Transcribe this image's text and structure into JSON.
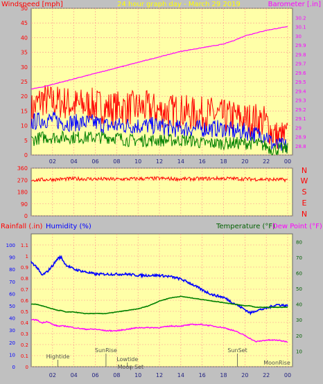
{
  "header": {
    "title": "24 hour graph day - March 29 2019",
    "wind_label": "Windspeed [mph]",
    "baro_label": "Barometer [.in]"
  },
  "labels": {
    "direction_letters": [
      "N",
      "W",
      "S",
      "E",
      "N"
    ],
    "rain_label": "Rainfall (.in)",
    "humidity_label": "Humidity (%)",
    "temp_label": "Temperature (°F)",
    "dew_label": "Dew Point (°F)"
  },
  "colors": {
    "plot_bg": "#ffffa8",
    "frame_bg": "#c0c0c0",
    "grid": "#ff9090",
    "wind_gust": "#ff0000",
    "wind_speed": "#0000ff",
    "wind_avg": "#008000",
    "barometer": "#ff00ff",
    "direction": "#ff0000",
    "humidity": "#0000ff",
    "temperature": "#008000",
    "dew_point": "#ff00ff",
    "title": "#ffff00",
    "events": "#505050"
  },
  "x_ticks": [
    "02",
    "04",
    "06",
    "08",
    "10",
    "12",
    "14",
    "16",
    "18",
    "20",
    "22",
    "00"
  ],
  "chart_data": [
    {
      "id": "wind_baro",
      "type": "line",
      "title": "24 hour graph day - March 29 2019",
      "ylabel": "Windspeed [mph]",
      "y2label": "Barometer [.in]",
      "ylim": [
        0,
        50
      ],
      "yticks": [
        "0",
        "5",
        "10",
        "15",
        "20",
        "25",
        "30",
        "35",
        "40",
        "45",
        "50"
      ],
      "y2lim": [
        28.7,
        30.3
      ],
      "y2ticks": [
        "28.8",
        "28.9",
        "29",
        "29.1",
        "29.2",
        "29.3",
        "29.4",
        "29.5",
        "29.6",
        "29.7",
        "29.8",
        "29.9",
        "30",
        "30.1",
        "30.2"
      ],
      "grid": true,
      "hours": [
        0,
        1,
        2,
        3,
        4,
        5,
        6,
        7,
        8,
        9,
        10,
        11,
        12,
        13,
        14,
        15,
        16,
        17,
        18,
        19,
        20,
        21,
        22,
        22.5,
        23,
        23.5,
        24
      ],
      "gust_mph": [
        15,
        19,
        18,
        18,
        17,
        17,
        17,
        16,
        16,
        16,
        16,
        16,
        15,
        15,
        15,
        14,
        14,
        14,
        13,
        13,
        12,
        12,
        11,
        8,
        6,
        6,
        6
      ],
      "speed_mph": [
        11,
        12,
        12,
        11,
        11,
        11,
        11,
        10,
        10,
        10,
        10,
        10,
        10,
        9,
        9,
        9,
        9,
        9,
        9,
        8,
        8,
        7,
        7,
        4,
        3,
        3,
        3
      ],
      "avg_mph": [
        5,
        6,
        6,
        6,
        6,
        6,
        6,
        6,
        6,
        5,
        5,
        5,
        5,
        5,
        5,
        5,
        4,
        4,
        4,
        4,
        4,
        4,
        3,
        2,
        2,
        2,
        2
      ],
      "barometer_inHg": [
        29.42,
        29.44,
        29.47,
        29.5,
        29.53,
        29.56,
        29.59,
        29.62,
        29.65,
        29.68,
        29.71,
        29.74,
        29.77,
        29.8,
        29.83,
        29.85,
        29.87,
        29.89,
        29.91,
        29.95,
        30.0,
        30.03,
        30.06,
        30.07,
        30.08,
        30.09,
        30.1
      ]
    },
    {
      "id": "direction",
      "type": "line",
      "ylim": [
        0,
        360
      ],
      "yticks": [
        "0",
        "90",
        "180",
        "270",
        "360"
      ],
      "grid": true,
      "hours": [
        0,
        2,
        4,
        6,
        8,
        10,
        12,
        14,
        16,
        18,
        20,
        22,
        24
      ],
      "direction_deg": [
        270,
        275,
        280,
        278,
        276,
        280,
        282,
        278,
        280,
        283,
        278,
        275,
        272
      ]
    },
    {
      "id": "rain_hum_temp",
      "type": "line",
      "ylabel": "Rainfall (.in)",
      "ylim": [
        0,
        1.2
      ],
      "yticks": [
        "0",
        "0.1",
        "0.2",
        "0.3",
        "0.4",
        "0.5",
        "0.6",
        "0.7",
        "0.8",
        "0.9",
        "1",
        "1.1"
      ],
      "humidity_ticks": [
        "0",
        "10",
        "20",
        "30",
        "40",
        "50",
        "60",
        "70",
        "80",
        "90",
        "100"
      ],
      "y2lim": [
        0,
        85
      ],
      "y2ticks": [
        "10",
        "20",
        "30",
        "40",
        "50",
        "60",
        "70",
        "80"
      ],
      "grid": true,
      "hours": [
        0,
        0.5,
        1,
        1.5,
        2,
        2.5,
        2.8,
        3.2,
        4,
        5,
        6,
        7,
        8,
        9,
        10,
        11,
        12,
        13,
        14,
        15,
        16,
        17,
        18,
        19,
        20,
        20.5,
        21,
        22,
        23,
        24
      ],
      "humidity_pct": [
        86,
        82,
        75,
        78,
        83,
        89,
        90,
        84,
        80,
        78,
        76,
        76,
        76,
        76,
        75,
        75,
        75,
        74,
        72,
        68,
        63,
        59,
        57,
        52,
        47,
        44,
        46,
        48,
        51,
        50
      ],
      "temperature_F": [
        40,
        40,
        39,
        38,
        37,
        36,
        36,
        35,
        35,
        34,
        34,
        34,
        35,
        36,
        37,
        39,
        42,
        44,
        45,
        44,
        43,
        42,
        41,
        40,
        39,
        39,
        38,
        38,
        38,
        38
      ],
      "dew_point_F": [
        30,
        30,
        28,
        29,
        27,
        26,
        26,
        26,
        25,
        24,
        24,
        23,
        23,
        24,
        25,
        25,
        25,
        26,
        26,
        27,
        27,
        26,
        25,
        23,
        20,
        18,
        16,
        17,
        17,
        16
      ],
      "events": [
        {
          "label": "Hightide",
          "hour": 2.5
        },
        {
          "label": "SunRise",
          "hour": 7
        },
        {
          "label": "Lowtide",
          "hour": 9
        },
        {
          "label": "Moon Set",
          "hour": 9.3
        },
        {
          "label": "SunSet",
          "hour": 19.3
        },
        {
          "label": "MoonRise",
          "hour": 23
        }
      ]
    }
  ]
}
